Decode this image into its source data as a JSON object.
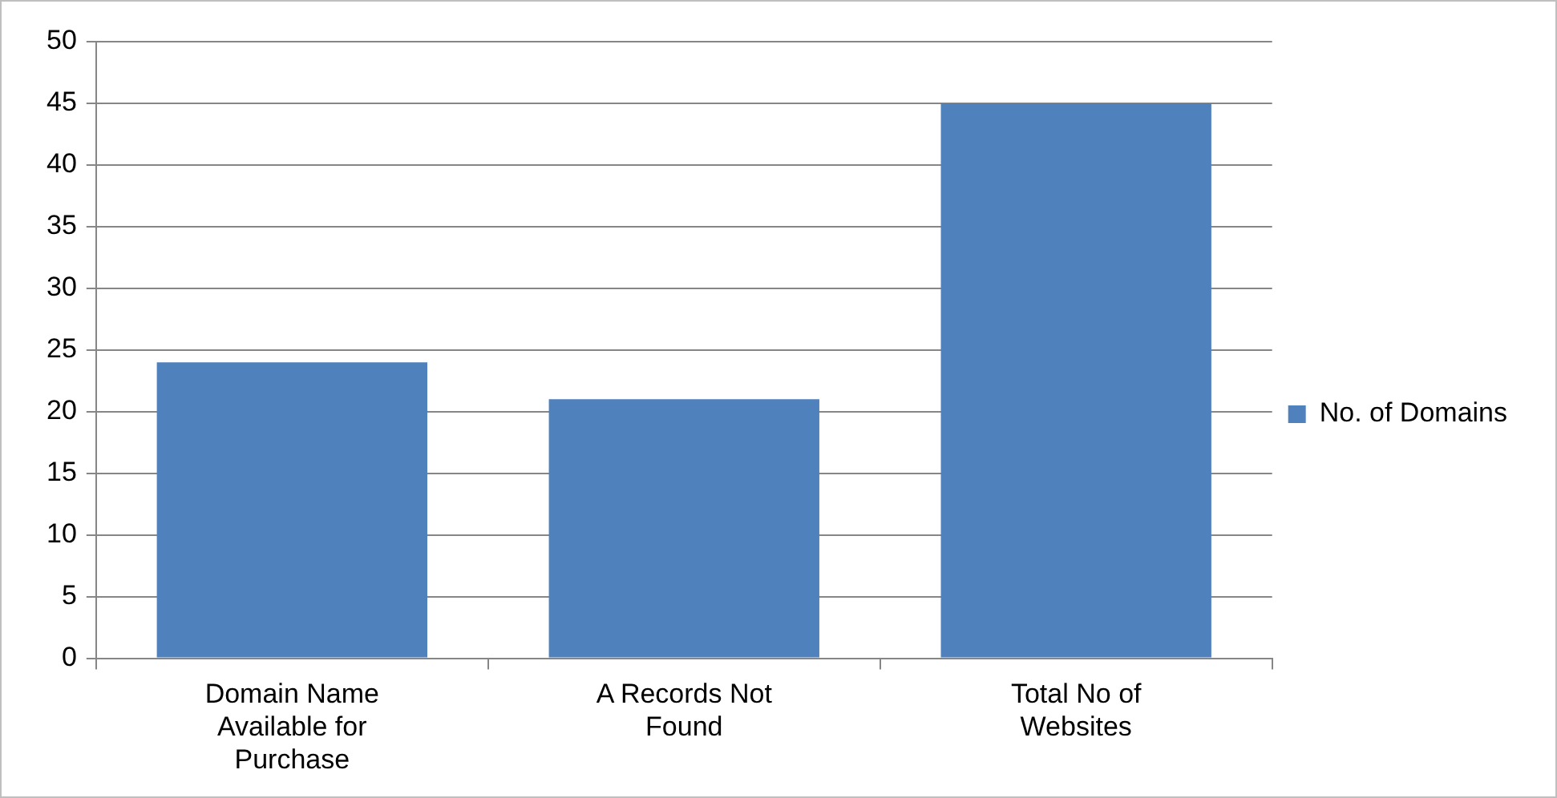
{
  "chart_data": {
    "type": "bar",
    "categories": [
      "Domain Name Available for Purchase",
      "A Records Not Found",
      "Total No of Websites"
    ],
    "series": [
      {
        "name": "No. of Domains",
        "color": "#4f81bd",
        "values": [
          24,
          21,
          45
        ]
      }
    ],
    "ylim": [
      0,
      50
    ],
    "yticks": [
      0,
      5,
      10,
      15,
      20,
      25,
      30,
      35,
      40,
      45,
      50
    ],
    "grid": "y",
    "legend": "right"
  }
}
